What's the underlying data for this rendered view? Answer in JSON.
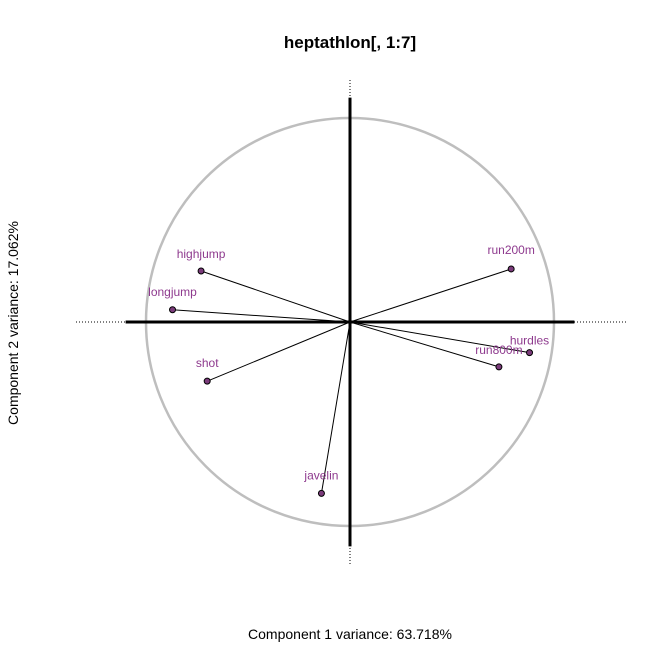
{
  "chart_data": {
    "type": "scatter",
    "title": "heptathlon[, 1:7]",
    "xlabel": "Component 1 variance: 63.718%",
    "ylabel": "Component 2 variance: 17.062%",
    "xlim": [
      -1.1,
      1.1
    ],
    "ylim": [
      -1.1,
      1.1
    ],
    "grid": false,
    "series": [
      {
        "points": [
          {
            "label": "hurdles",
            "x": 0.88,
            "y": -0.15
          },
          {
            "label": "highjump",
            "x": -0.73,
            "y": 0.25
          },
          {
            "label": "shot",
            "x": -0.7,
            "y": -0.29
          },
          {
            "label": "run200m",
            "x": 0.79,
            "y": 0.26
          },
          {
            "label": "longjump",
            "x": -0.87,
            "y": 0.06
          },
          {
            "label": "javelin",
            "x": -0.14,
            "y": -0.84
          },
          {
            "label": "run800m",
            "x": 0.73,
            "y": -0.22
          }
        ]
      }
    ]
  },
  "colors": {
    "circle": "#bebebe",
    "point_fill": "#7b3b7b",
    "label": "#8e3a8e",
    "axis": "#000000"
  }
}
